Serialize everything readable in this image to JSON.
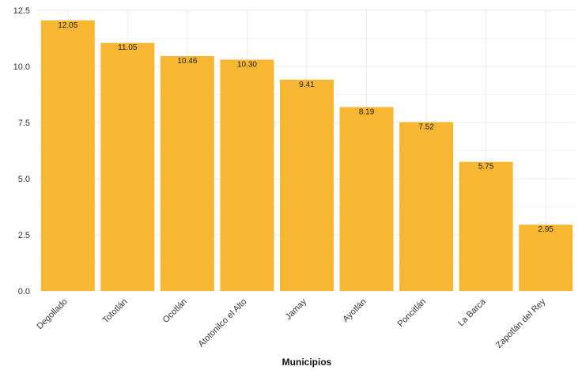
{
  "chart_data": {
    "type": "bar",
    "title": "",
    "xlabel": "Municipios",
    "ylabel": "",
    "categories": [
      "Degollado",
      "Tototlán",
      "Ocotlán",
      "Atotonilco el Alto",
      "Jamay",
      "Ayotlán",
      "Poncitlán",
      "La Barca",
      "Zapotlán del Rey"
    ],
    "values": [
      12.05,
      11.05,
      10.46,
      10.3,
      9.41,
      8.19,
      7.52,
      5.75,
      2.95
    ],
    "value_labels": [
      "12.05",
      "11.05",
      "10.46",
      "10.30",
      "9.41",
      "8.19",
      "7.52",
      "5.75",
      "2.95"
    ],
    "y_ticks": [
      0,
      2.5,
      5,
      7.5,
      10,
      12.5
    ],
    "y_tick_labels": [
      "0.0",
      "2.5",
      "5.0",
      "7.5",
      "10.0",
      "12.5"
    ],
    "ylim": [
      0,
      12.5
    ],
    "grid": true,
    "legend": "none",
    "bar_color": "#F7B733",
    "grid_color": "#EBEBEB"
  }
}
